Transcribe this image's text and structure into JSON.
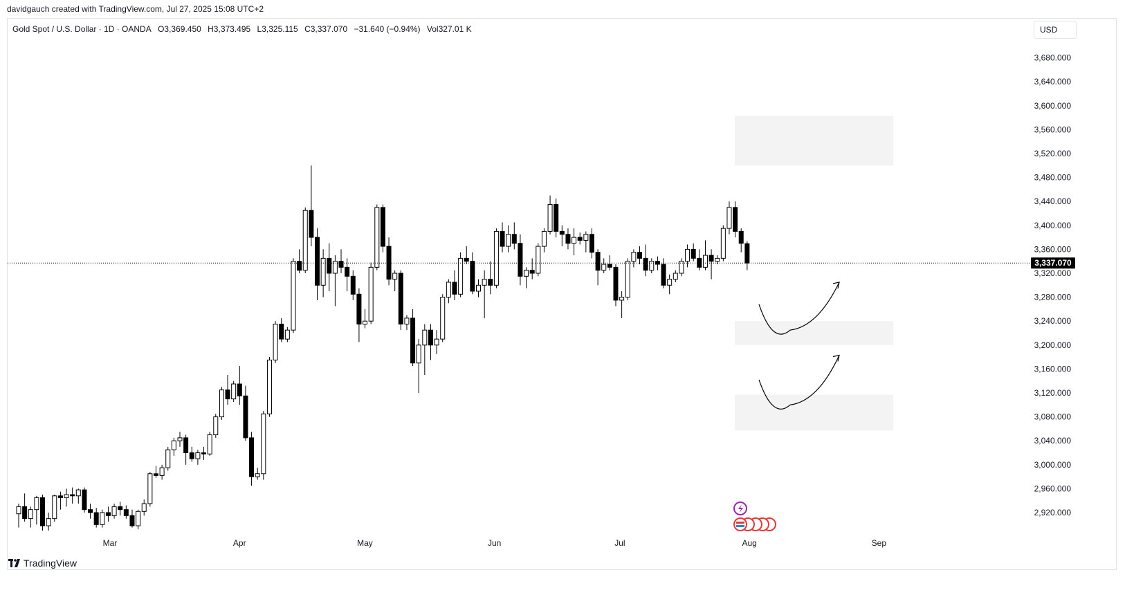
{
  "header": {
    "credit": "davidgauch created with TradingView.com, Jul 27, 2025 15:08 UTC+2"
  },
  "legend": {
    "symbol": "Gold Spot / U.S. Dollar · 1D · OANDA",
    "open": "O3,369.450",
    "high": "H3,373.495",
    "low": "L3,325.115",
    "close": "C3,337.070",
    "change": "−31.640 (−0.94%)",
    "volume": "Vol327.01 K"
  },
  "currency_button": "USD",
  "brand": "TradingView",
  "colors": {
    "up_fill": "#ffffff",
    "down_fill": "#000000",
    "candle_border": "#000000",
    "zone": "#f3f3f3",
    "axis_text": "#131722"
  },
  "chart_data": {
    "type": "candlestick",
    "last_price_label": "3,337.070",
    "last_price": 3337.07,
    "y_ticks": [
      2920,
      2960,
      3000,
      3040,
      3080,
      3120,
      3160,
      3200,
      3240,
      3280,
      3320,
      3360,
      3400,
      3440,
      3480,
      3520,
      3560,
      3600,
      3640,
      3680
    ],
    "y_tick_labels": [
      "2,920.000",
      "2,960.000",
      "3,000.000",
      "3,040.000",
      "3,080.000",
      "3,120.000",
      "3,160.000",
      "3,200.000",
      "3,240.000",
      "3,280.000",
      "3,320.000",
      "3,360.000",
      "3,400.000",
      "3,440.000",
      "3,480.000",
      "3,520.000",
      "3,560.000",
      "3,600.000",
      "3,640.000",
      "3,680.000"
    ],
    "ylim": [
      2890,
      3700
    ],
    "x_labels": [
      {
        "label": "Mar",
        "date": "2025-03-01"
      },
      {
        "label": "Apr",
        "date": "2025-04-01"
      },
      {
        "label": "May",
        "date": "2025-05-01"
      },
      {
        "label": "Jun",
        "date": "2025-06-01"
      },
      {
        "label": "Jul",
        "date": "2025-07-01"
      },
      {
        "label": "Aug",
        "date": "2025-08-01"
      },
      {
        "label": "Sep",
        "date": "2025-09-01"
      }
    ],
    "candles": [
      {
        "o": 2918,
        "h": 2935,
        "l": 2895,
        "c": 2930
      },
      {
        "o": 2930,
        "h": 2952,
        "l": 2905,
        "c": 2910
      },
      {
        "o": 2910,
        "h": 2930,
        "l": 2895,
        "c": 2925
      },
      {
        "o": 2925,
        "h": 2948,
        "l": 2900,
        "c": 2945
      },
      {
        "o": 2945,
        "h": 2950,
        "l": 2890,
        "c": 2898
      },
      {
        "o": 2898,
        "h": 2920,
        "l": 2890,
        "c": 2910
      },
      {
        "o": 2910,
        "h": 2950,
        "l": 2905,
        "c": 2948
      },
      {
        "o": 2948,
        "h": 2955,
        "l": 2925,
        "c": 2945
      },
      {
        "o": 2945,
        "h": 2960,
        "l": 2930,
        "c": 2950
      },
      {
        "o": 2950,
        "h": 2962,
        "l": 2935,
        "c": 2948
      },
      {
        "o": 2948,
        "h": 2960,
        "l": 2935,
        "c": 2958
      },
      {
        "o": 2958,
        "h": 2962,
        "l": 2920,
        "c": 2925
      },
      {
        "o": 2925,
        "h": 2935,
        "l": 2910,
        "c": 2920
      },
      {
        "o": 2920,
        "h": 2928,
        "l": 2895,
        "c": 2900
      },
      {
        "o": 2900,
        "h": 2925,
        "l": 2895,
        "c": 2920
      },
      {
        "o": 2920,
        "h": 2930,
        "l": 2905,
        "c": 2915
      },
      {
        "o": 2915,
        "h": 2935,
        "l": 2910,
        "c": 2930
      },
      {
        "o": 2930,
        "h": 2938,
        "l": 2915,
        "c": 2925
      },
      {
        "o": 2925,
        "h": 2932,
        "l": 2910,
        "c": 2915
      },
      {
        "o": 2915,
        "h": 2925,
        "l": 2895,
        "c": 2898
      },
      {
        "o": 2898,
        "h": 2925,
        "l": 2892,
        "c": 2922
      },
      {
        "o": 2922,
        "h": 2942,
        "l": 2915,
        "c": 2935
      },
      {
        "o": 2935,
        "h": 2988,
        "l": 2930,
        "c": 2985
      },
      {
        "o": 2985,
        "h": 2998,
        "l": 2978,
        "c": 2982
      },
      {
        "o": 2982,
        "h": 3000,
        "l": 2975,
        "c": 2995
      },
      {
        "o": 2995,
        "h": 3030,
        "l": 2990,
        "c": 3025
      },
      {
        "o": 3025,
        "h": 3045,
        "l": 3015,
        "c": 3040
      },
      {
        "o": 3040,
        "h": 3055,
        "l": 3030,
        "c": 3045
      },
      {
        "o": 3045,
        "h": 3050,
        "l": 3000,
        "c": 3020
      },
      {
        "o": 3020,
        "h": 3030,
        "l": 3005,
        "c": 3010
      },
      {
        "o": 3010,
        "h": 3025,
        "l": 3000,
        "c": 3020
      },
      {
        "o": 3020,
        "h": 3030,
        "l": 3008,
        "c": 3018
      },
      {
        "o": 3018,
        "h": 3055,
        "l": 3015,
        "c": 3050
      },
      {
        "o": 3050,
        "h": 3085,
        "l": 3045,
        "c": 3080
      },
      {
        "o": 3080,
        "h": 3130,
        "l": 3075,
        "c": 3125
      },
      {
        "o": 3125,
        "h": 3150,
        "l": 3100,
        "c": 3110
      },
      {
        "o": 3110,
        "h": 3140,
        "l": 3105,
        "c": 3135
      },
      {
        "o": 3135,
        "h": 3165,
        "l": 3100,
        "c": 3115
      },
      {
        "o": 3115,
        "h": 3132,
        "l": 3040,
        "c": 3045
      },
      {
        "o": 3045,
        "h": 3055,
        "l": 2965,
        "c": 2980
      },
      {
        "o": 2980,
        "h": 2995,
        "l": 2975,
        "c": 2985
      },
      {
        "o": 2985,
        "h": 3090,
        "l": 2975,
        "c": 3085
      },
      {
        "o": 3085,
        "h": 3180,
        "l": 3080,
        "c": 3175
      },
      {
        "o": 3175,
        "h": 3240,
        "l": 3170,
        "c": 3235
      },
      {
        "o": 3235,
        "h": 3245,
        "l": 3205,
        "c": 3210
      },
      {
        "o": 3210,
        "h": 3230,
        "l": 3205,
        "c": 3225
      },
      {
        "o": 3225,
        "h": 3345,
        "l": 3220,
        "c": 3340
      },
      {
        "o": 3340,
        "h": 3360,
        "l": 3320,
        "c": 3325
      },
      {
        "o": 3325,
        "h": 3430,
        "l": 3320,
        "c": 3425
      },
      {
        "o": 3425,
        "h": 3500,
        "l": 3365,
        "c": 3380
      },
      {
        "o": 3380,
        "h": 3395,
        "l": 3275,
        "c": 3300
      },
      {
        "o": 3300,
        "h": 3360,
        "l": 3280,
        "c": 3345
      },
      {
        "o": 3345,
        "h": 3370,
        "l": 3290,
        "c": 3320
      },
      {
        "o": 3320,
        "h": 3350,
        "l": 3265,
        "c": 3340
      },
      {
        "o": 3340,
        "h": 3360,
        "l": 3320,
        "c": 3330
      },
      {
        "o": 3330,
        "h": 3345,
        "l": 3290,
        "c": 3315
      },
      {
        "o": 3315,
        "h": 3325,
        "l": 3275,
        "c": 3285
      },
      {
        "o": 3285,
        "h": 3295,
        "l": 3205,
        "c": 3235
      },
      {
        "o": 3235,
        "h": 3260,
        "l": 3228,
        "c": 3240
      },
      {
        "o": 3240,
        "h": 3338,
        "l": 3235,
        "c": 3330
      },
      {
        "o": 3330,
        "h": 3435,
        "l": 3325,
        "c": 3430
      },
      {
        "o": 3430,
        "h": 3435,
        "l": 3355,
        "c": 3365
      },
      {
        "o": 3365,
        "h": 3380,
        "l": 3300,
        "c": 3310
      },
      {
        "o": 3310,
        "h": 3325,
        "l": 3290,
        "c": 3320
      },
      {
        "o": 3320,
        "h": 3325,
        "l": 3225,
        "c": 3235
      },
      {
        "o": 3235,
        "h": 3250,
        "l": 3225,
        "c": 3245
      },
      {
        "o": 3245,
        "h": 3260,
        "l": 3165,
        "c": 3170
      },
      {
        "o": 3170,
        "h": 3210,
        "l": 3120,
        "c": 3200
      },
      {
        "o": 3200,
        "h": 3235,
        "l": 3150,
        "c": 3225
      },
      {
        "o": 3225,
        "h": 3235,
        "l": 3175,
        "c": 3200
      },
      {
        "o": 3200,
        "h": 3225,
        "l": 3185,
        "c": 3210
      },
      {
        "o": 3210,
        "h": 3285,
        "l": 3205,
        "c": 3280
      },
      {
        "o": 3280,
        "h": 3310,
        "l": 3270,
        "c": 3305
      },
      {
        "o": 3305,
        "h": 3325,
        "l": 3275,
        "c": 3285
      },
      {
        "o": 3285,
        "h": 3355,
        "l": 3280,
        "c": 3345
      },
      {
        "o": 3345,
        "h": 3365,
        "l": 3335,
        "c": 3340
      },
      {
        "o": 3340,
        "h": 3355,
        "l": 3285,
        "c": 3290
      },
      {
        "o": 3290,
        "h": 3310,
        "l": 3280,
        "c": 3300
      },
      {
        "o": 3300,
        "h": 3325,
        "l": 3245,
        "c": 3310
      },
      {
        "o": 3310,
        "h": 3340,
        "l": 3285,
        "c": 3300
      },
      {
        "o": 3300,
        "h": 3395,
        "l": 3295,
        "c": 3390
      },
      {
        "o": 3390,
        "h": 3405,
        "l": 3355,
        "c": 3365
      },
      {
        "o": 3365,
        "h": 3400,
        "l": 3355,
        "c": 3385
      },
      {
        "o": 3385,
        "h": 3405,
        "l": 3360,
        "c": 3370
      },
      {
        "o": 3370,
        "h": 3385,
        "l": 3300,
        "c": 3315
      },
      {
        "o": 3315,
        "h": 3330,
        "l": 3295,
        "c": 3325
      },
      {
        "o": 3325,
        "h": 3345,
        "l": 3310,
        "c": 3320
      },
      {
        "o": 3320,
        "h": 3370,
        "l": 3315,
        "c": 3365
      },
      {
        "o": 3365,
        "h": 3395,
        "l": 3355,
        "c": 3390
      },
      {
        "o": 3390,
        "h": 3450,
        "l": 3385,
        "c": 3435
      },
      {
        "o": 3435,
        "h": 3445,
        "l": 3380,
        "c": 3390
      },
      {
        "o": 3390,
        "h": 3400,
        "l": 3365,
        "c": 3385
      },
      {
        "o": 3385,
        "h": 3395,
        "l": 3360,
        "c": 3370
      },
      {
        "o": 3370,
        "h": 3395,
        "l": 3350,
        "c": 3380
      },
      {
        "o": 3380,
        "h": 3388,
        "l": 3368,
        "c": 3375
      },
      {
        "o": 3375,
        "h": 3390,
        "l": 3355,
        "c": 3385
      },
      {
        "o": 3385,
        "h": 3395,
        "l": 3345,
        "c": 3355
      },
      {
        "o": 3355,
        "h": 3360,
        "l": 3300,
        "c": 3325
      },
      {
        "o": 3325,
        "h": 3345,
        "l": 3320,
        "c": 3335
      },
      {
        "o": 3335,
        "h": 3350,
        "l": 3325,
        "c": 3330
      },
      {
        "o": 3330,
        "h": 3335,
        "l": 3265,
        "c": 3275
      },
      {
        "o": 3275,
        "h": 3290,
        "l": 3245,
        "c": 3280
      },
      {
        "o": 3280,
        "h": 3345,
        "l": 3275,
        "c": 3340
      },
      {
        "o": 3340,
        "h": 3360,
        "l": 3330,
        "c": 3355
      },
      {
        "o": 3355,
        "h": 3365,
        "l": 3335,
        "c": 3345
      },
      {
        "o": 3345,
        "h": 3368,
        "l": 3315,
        "c": 3325
      },
      {
        "o": 3325,
        "h": 3345,
        "l": 3320,
        "c": 3340
      },
      {
        "o": 3340,
        "h": 3348,
        "l": 3325,
        "c": 3335
      },
      {
        "o": 3335,
        "h": 3345,
        "l": 3295,
        "c": 3300
      },
      {
        "o": 3300,
        "h": 3318,
        "l": 3285,
        "c": 3310
      },
      {
        "o": 3310,
        "h": 3325,
        "l": 3305,
        "c": 3320
      },
      {
        "o": 3320,
        "h": 3345,
        "l": 3315,
        "c": 3340
      },
      {
        "o": 3340,
        "h": 3368,
        "l": 3330,
        "c": 3360
      },
      {
        "o": 3360,
        "h": 3370,
        "l": 3340,
        "c": 3345
      },
      {
        "o": 3345,
        "h": 3360,
        "l": 3325,
        "c": 3330
      },
      {
        "o": 3330,
        "h": 3375,
        "l": 3325,
        "c": 3350
      },
      {
        "o": 3350,
        "h": 3360,
        "l": 3310,
        "c": 3340
      },
      {
        "o": 3340,
        "h": 3350,
        "l": 3335,
        "c": 3345
      },
      {
        "o": 3345,
        "h": 3400,
        "l": 3340,
        "c": 3395
      },
      {
        "o": 3395,
        "h": 3440,
        "l": 3385,
        "c": 3430
      },
      {
        "o": 3430,
        "h": 3440,
        "l": 3380,
        "c": 3390
      },
      {
        "o": 3390,
        "h": 3395,
        "l": 3355,
        "c": 3370
      },
      {
        "o": 3369.45,
        "h": 3373.495,
        "l": 3325.115,
        "c": 3337.07
      }
    ],
    "zones": [
      {
        "top": 3583,
        "bottom": 3500
      },
      {
        "top": 3240,
        "bottom": 3200
      },
      {
        "top": 3117,
        "bottom": 3057
      }
    ],
    "arrows": [
      {
        "start": 3268,
        "low": 3225,
        "end": 3305
      },
      {
        "start": 3142,
        "low": 3100,
        "end": 3183
      }
    ]
  }
}
